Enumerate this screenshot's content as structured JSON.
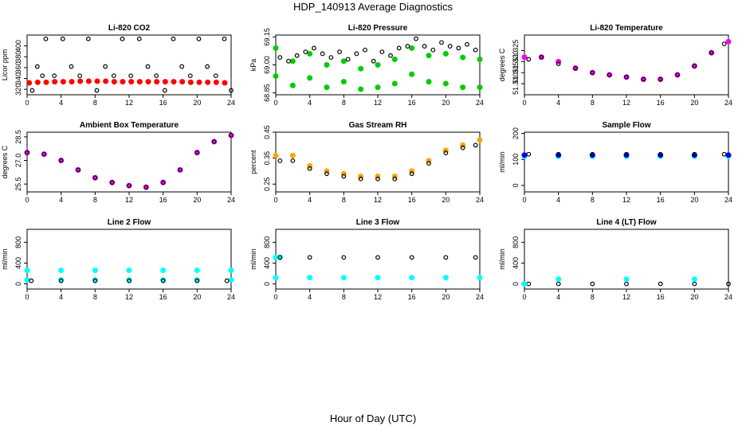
{
  "figure": {
    "title": "HDP_140913  Average Diagnostics",
    "xlabel": "Hour of Day (UTC)"
  },
  "chart_data": [
    {
      "id": "co2",
      "type": "scatter",
      "title": "Li-820 CO2",
      "ylabel": "Licor ppm",
      "xlim": [
        0,
        24
      ],
      "ylim": [
        310,
        420
      ],
      "xticks": [
        0,
        4,
        8,
        12,
        16,
        20,
        24
      ],
      "yticks": [
        320,
        340,
        360,
        380,
        400
      ],
      "series": [
        {
          "name": "co2-red",
          "color": "#ff0000",
          "symbol": "circle-filled",
          "x": [
            0.25,
            1.25,
            2.25,
            3.25,
            4.25,
            5.25,
            6.25,
            7.25,
            8.25,
            9.25,
            10.25,
            11.25,
            12.25,
            13.25,
            14.25,
            15.25,
            16.25,
            17.25,
            18.25,
            19.25,
            20.25,
            21.25,
            22.25,
            23.25
          ],
          "y": [
            332,
            333,
            333,
            334,
            334,
            334,
            335,
            335,
            335,
            335,
            334,
            334,
            334,
            334,
            334,
            334,
            334,
            334,
            334,
            333,
            333,
            333,
            333,
            332
          ]
        },
        {
          "name": "co2-black",
          "color": "#000000",
          "symbol": "circle-open",
          "x": [
            0.6,
            1.2,
            1.8,
            2.2,
            3.2,
            4.2,
            5.2,
            6.2,
            7.2,
            8.2,
            9.2,
            10.2,
            11.2,
            12.2,
            13.2,
            14.2,
            15.2,
            16.2,
            17.2,
            18.2,
            19.2,
            20.2,
            21.2,
            22.2,
            23.2,
            24.0
          ],
          "y": [
            318,
            362,
            345,
            413,
            345,
            413,
            362,
            345,
            413,
            318,
            362,
            345,
            413,
            345,
            413,
            362,
            345,
            318,
            413,
            362,
            345,
            413,
            362,
            345,
            413,
            318
          ]
        }
      ]
    },
    {
      "id": "pressure",
      "type": "scatter",
      "title": "Li-820 Pressure",
      "ylabel": "kPa",
      "xlim": [
        0,
        24
      ],
      "ylim": [
        68.84,
        69.16
      ],
      "xticks": [
        0,
        4,
        8,
        12,
        16,
        20,
        24
      ],
      "yticks": [
        68.85,
        69.0,
        69.15
      ],
      "ytick_labels": [
        "68.85",
        "69.00",
        "69.15"
      ],
      "series": [
        {
          "name": "pressure-green-upper",
          "color": "#00cc00",
          "symbol": "circle-filled",
          "x": [
            0,
            2,
            4,
            6,
            8,
            10,
            12,
            14,
            16,
            18,
            20,
            22,
            24
          ],
          "y": [
            69.09,
            69.02,
            69.06,
            69.0,
            69.02,
            68.98,
            69.0,
            69.03,
            69.09,
            69.05,
            69.06,
            69.04,
            69.03
          ]
        },
        {
          "name": "pressure-green-lower",
          "color": "#00cc00",
          "symbol": "circle-filled",
          "x": [
            0,
            2,
            4,
            6,
            8,
            10,
            12,
            14,
            16,
            18,
            20,
            22,
            24
          ],
          "y": [
            68.94,
            68.89,
            68.93,
            68.88,
            68.91,
            68.87,
            68.88,
            68.9,
            68.95,
            68.91,
            68.9,
            68.88,
            68.88
          ]
        },
        {
          "name": "pressure-black",
          "color": "#000000",
          "symbol": "circle-open",
          "x": [
            0.5,
            1.5,
            2.5,
            3.5,
            4.5,
            5.5,
            6.5,
            7.5,
            8.5,
            9.5,
            10.5,
            11.5,
            12.5,
            13.5,
            14.5,
            15.5,
            16.5,
            17.5,
            18.5,
            19.5,
            20.5,
            21.5,
            22.5,
            23.5
          ],
          "y": [
            69.04,
            69.02,
            69.05,
            69.07,
            69.09,
            69.06,
            69.04,
            69.07,
            69.03,
            69.06,
            69.08,
            69.02,
            69.07,
            69.05,
            69.09,
            69.1,
            69.14,
            69.1,
            69.08,
            69.12,
            69.1,
            69.09,
            69.11,
            69.08
          ]
        }
      ]
    },
    {
      "id": "temperature",
      "type": "scatter",
      "title": "Li-820 Temperature",
      "ylabel": "degrees C",
      "xlim": [
        0,
        24
      ],
      "ylim": [
        51.305,
        51.332
      ],
      "xticks": [
        0,
        4,
        8,
        12,
        16,
        20,
        24
      ],
      "yticks": [
        51.31,
        51.315,
        51.32,
        51.325
      ],
      "ytick_labels": [
        "51.310",
        "51.315",
        "51.320",
        "51.325"
      ],
      "series": [
        {
          "name": "temp-magenta",
          "color": "#ff00ff",
          "symbol": "circle-filled",
          "x": [
            0,
            2,
            4,
            6,
            8,
            10,
            12,
            14,
            16,
            18,
            20,
            22,
            24
          ],
          "y": [
            51.322,
            51.322,
            51.32,
            51.317,
            51.315,
            51.314,
            51.313,
            51.312,
            51.312,
            51.314,
            51.318,
            51.324,
            51.329
          ]
        },
        {
          "name": "temp-black",
          "color": "#000000",
          "symbol": "circle-open",
          "x": [
            0.5,
            2,
            4,
            6,
            8,
            10,
            12,
            14,
            16,
            18,
            20,
            22,
            23.5
          ],
          "y": [
            51.321,
            51.322,
            51.319,
            51.317,
            51.315,
            51.314,
            51.313,
            51.312,
            51.312,
            51.314,
            51.318,
            51.324,
            51.328
          ]
        }
      ]
    },
    {
      "id": "ambient",
      "type": "scatter",
      "title": "Ambient Box Temperature",
      "ylabel": "degrees C",
      "xlim": [
        0,
        24
      ],
      "ylim": [
        25.0,
        28.8
      ],
      "xticks": [
        0,
        4,
        8,
        12,
        16,
        20,
        24
      ],
      "yticks": [
        25.5,
        27.0,
        28.5
      ],
      "ytick_labels": [
        "25.5",
        "27.0",
        "28.5"
      ],
      "series": [
        {
          "name": "ambient-magenta",
          "color": "#ff00ff",
          "symbol": "circle-filled",
          "x": [
            0,
            2,
            4,
            6,
            8,
            10,
            12,
            14,
            16,
            18,
            20,
            22,
            24
          ],
          "y": [
            27.5,
            27.4,
            27.0,
            26.4,
            25.9,
            25.6,
            25.4,
            25.3,
            25.6,
            26.4,
            27.5,
            28.2,
            28.6
          ]
        },
        {
          "name": "ambient-black",
          "color": "#000000",
          "symbol": "circle-open",
          "x": [
            0,
            2,
            4,
            6,
            8,
            10,
            12,
            14,
            16,
            18,
            20,
            22,
            24
          ],
          "y": [
            27.5,
            27.4,
            27.0,
            26.4,
            25.9,
            25.6,
            25.4,
            25.3,
            25.6,
            26.4,
            27.5,
            28.2,
            28.6
          ]
        }
      ]
    },
    {
      "id": "rh",
      "type": "scatter",
      "title": "Gas Stream RH",
      "ylabel": "percent",
      "xlim": [
        0,
        24
      ],
      "ylim": [
        0.22,
        0.45
      ],
      "xticks": [
        0,
        4,
        8,
        12,
        16,
        20,
        24
      ],
      "yticks": [
        0.25,
        0.35,
        0.45
      ],
      "ytick_labels": [
        "0.25",
        "0.35",
        "0.45"
      ],
      "series": [
        {
          "name": "rh-orange",
          "color": "#ffa500",
          "symbol": "circle-filled",
          "x": [
            0,
            2,
            4,
            6,
            8,
            10,
            12,
            14,
            16,
            18,
            20,
            22,
            24
          ],
          "y": [
            0.36,
            0.36,
            0.32,
            0.3,
            0.29,
            0.28,
            0.28,
            0.28,
            0.3,
            0.34,
            0.38,
            0.4,
            0.42
          ]
        },
        {
          "name": "rh-black",
          "color": "#000000",
          "symbol": "circle-open",
          "x": [
            0.5,
            2,
            4,
            6,
            8,
            10,
            12,
            14,
            16,
            18,
            20,
            22,
            23.5
          ],
          "y": [
            0.34,
            0.34,
            0.31,
            0.29,
            0.28,
            0.27,
            0.27,
            0.27,
            0.29,
            0.33,
            0.37,
            0.39,
            0.4
          ]
        }
      ]
    },
    {
      "id": "sample-flow",
      "type": "scatter",
      "title": "Sample Flow",
      "ylabel": "ml/min",
      "xlim": [
        0,
        24
      ],
      "ylim": [
        -25,
        205
      ],
      "xticks": [
        0,
        4,
        8,
        12,
        16,
        20,
        24
      ],
      "yticks": [
        0,
        100,
        200
      ],
      "series": [
        {
          "name": "sample-cyan",
          "color": "#00ffff",
          "symbol": "circle-filled",
          "x": [
            0,
            4,
            8,
            12,
            16,
            20,
            24
          ],
          "y": [
            112,
            112,
            112,
            112,
            112,
            112,
            112
          ]
        },
        {
          "name": "sample-blue",
          "color": "#0000ff",
          "symbol": "circle-filled",
          "x": [
            0,
            4,
            8,
            12,
            16,
            20,
            24
          ],
          "y": [
            117,
            117,
            117,
            117,
            117,
            117,
            117
          ]
        },
        {
          "name": "sample-black",
          "color": "#000000",
          "symbol": "circle-open",
          "x": [
            0.5,
            4,
            8,
            12,
            16,
            20,
            23.5
          ],
          "y": [
            120,
            120,
            120,
            120,
            120,
            120,
            120
          ]
        }
      ]
    },
    {
      "id": "line2",
      "type": "scatter",
      "title": "Line 2 Flow",
      "ylabel": "ml/min",
      "xlim": [
        0,
        24
      ],
      "ylim": [
        -100,
        1050
      ],
      "xticks": [
        0,
        4,
        8,
        12,
        16,
        20,
        24
      ],
      "yticks": [
        0,
        400,
        800
      ],
      "series": [
        {
          "name": "line2-cyan-upper",
          "color": "#00ffff",
          "symbol": "circle-filled",
          "x": [
            0,
            4,
            8,
            12,
            16,
            20,
            24
          ],
          "y": [
            260,
            260,
            260,
            260,
            260,
            260,
            260
          ]
        },
        {
          "name": "line2-cyan-lower",
          "color": "#00ffff",
          "symbol": "circle-filled",
          "x": [
            0,
            4,
            8,
            12,
            16,
            20,
            24
          ],
          "y": [
            75,
            75,
            75,
            75,
            75,
            75,
            75
          ]
        },
        {
          "name": "line2-black",
          "color": "#000000",
          "symbol": "circle-open",
          "x": [
            0.5,
            4,
            8,
            12,
            16,
            20,
            23.5
          ],
          "y": [
            60,
            60,
            60,
            60,
            60,
            60,
            60
          ]
        }
      ]
    },
    {
      "id": "line3",
      "type": "scatter",
      "title": "Line 3 Flow",
      "ylabel": "ml/min",
      "xlim": [
        0,
        24
      ],
      "ylim": [
        -100,
        1050
      ],
      "xticks": [
        0,
        4,
        8,
        12,
        16,
        20,
        24
      ],
      "yticks": [
        0,
        400,
        800
      ],
      "series": [
        {
          "name": "line3-cyan-upper",
          "color": "#00ffff",
          "symbol": "circle-filled",
          "x": [
            0,
            0.5
          ],
          "y": [
            510,
            510
          ]
        },
        {
          "name": "line3-black",
          "color": "#000000",
          "symbol": "circle-open",
          "x": [
            0.5,
            4,
            8,
            12,
            16,
            20,
            23.5
          ],
          "y": [
            510,
            510,
            510,
            510,
            510,
            510,
            510
          ]
        },
        {
          "name": "line3-cyan-lower",
          "color": "#00ffff",
          "symbol": "circle-filled",
          "x": [
            0,
            4,
            8,
            12,
            16,
            20,
            24
          ],
          "y": [
            120,
            120,
            120,
            120,
            120,
            120,
            120
          ]
        }
      ]
    },
    {
      "id": "line4",
      "type": "scatter",
      "title": "Line 4 (LT) Flow",
      "ylabel": "ml/min",
      "xlim": [
        0,
        24
      ],
      "ylim": [
        -100,
        1050
      ],
      "xticks": [
        0,
        4,
        8,
        12,
        16,
        20,
        24
      ],
      "yticks": [
        0,
        400,
        800
      ],
      "series": [
        {
          "name": "line4-black",
          "color": "#000000",
          "symbol": "circle-open",
          "x": [
            0.5,
            4,
            8,
            12,
            16,
            20,
            24
          ],
          "y": [
            0,
            0,
            0,
            0,
            0,
            0,
            0
          ]
        },
        {
          "name": "line4-cyan",
          "color": "#00ffff",
          "symbol": "circle-filled",
          "x": [
            0,
            4,
            12,
            20
          ],
          "y": [
            0,
            90,
            90,
            90
          ]
        }
      ]
    }
  ]
}
